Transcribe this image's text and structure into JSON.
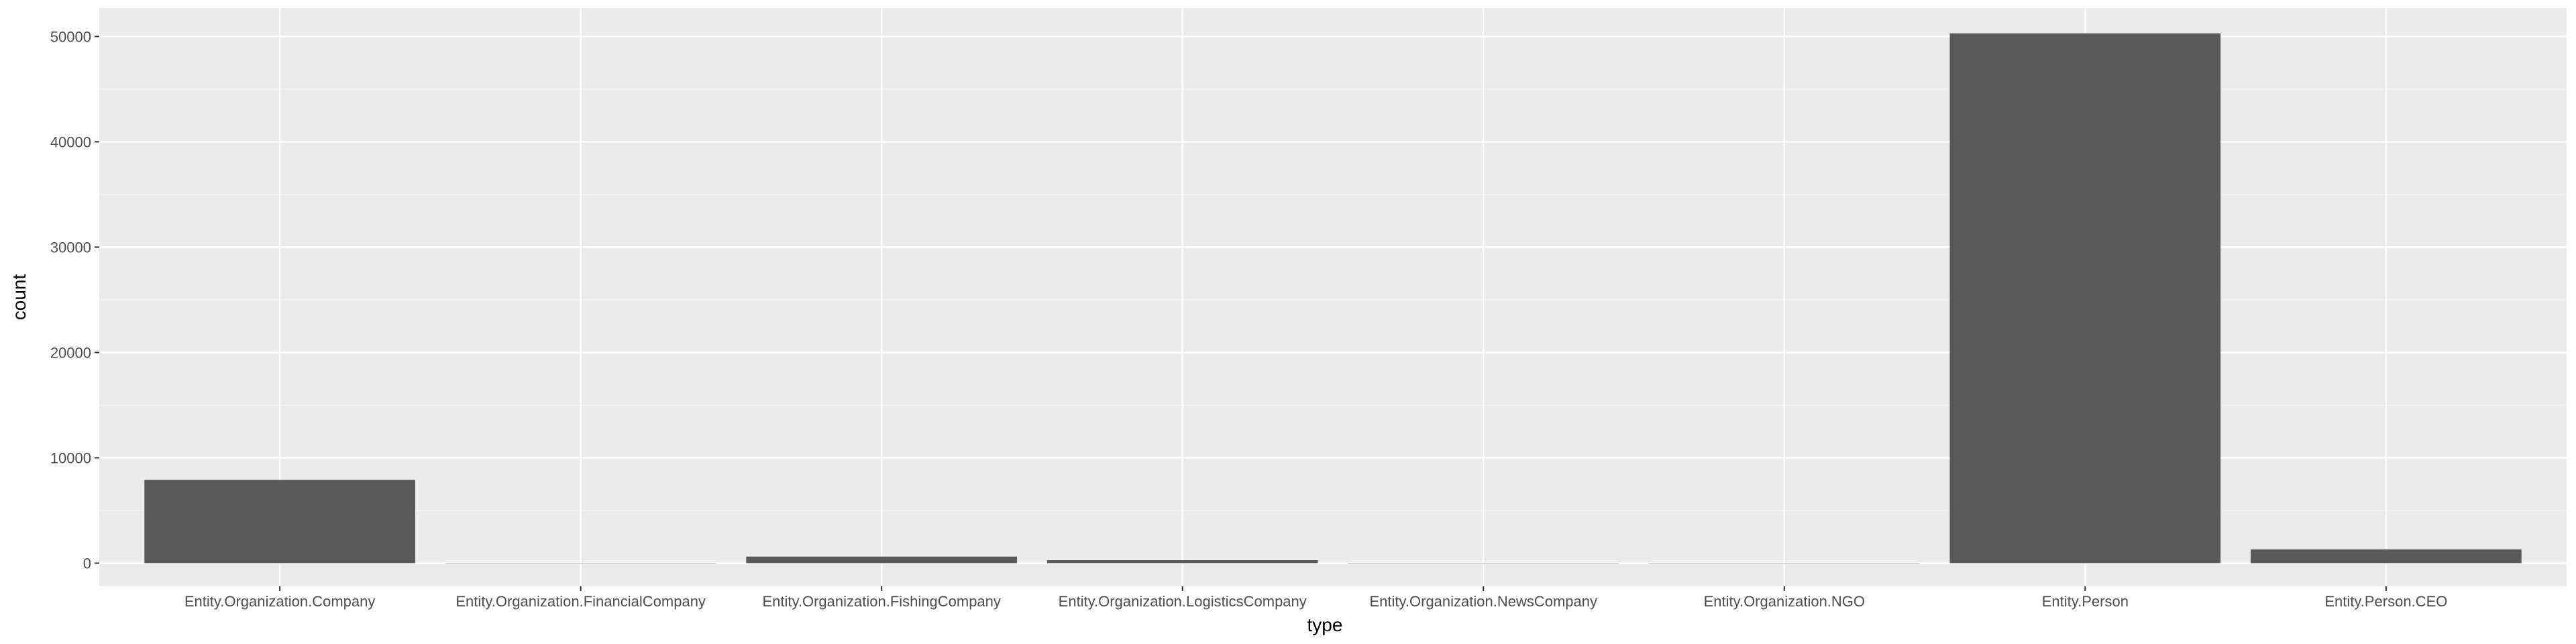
{
  "chart_data": {
    "type": "bar",
    "title": "",
    "xlabel": "type",
    "ylabel": "count",
    "categories": [
      "Entity.Organization.Company",
      "Entity.Organization.FinancialCompany",
      "Entity.Organization.FishingCompany",
      "Entity.Organization.LogisticsCompany",
      "Entity.Organization.NewsCompany",
      "Entity.Organization.NGO",
      "Entity.Person",
      "Entity.Person.CEO"
    ],
    "values": [
      7900,
      20,
      620,
      280,
      10,
      15,
      50300,
      1300
    ],
    "ylim": [
      -2200,
      52700
    ],
    "yticks": [
      0,
      10000,
      20000,
      30000,
      40000,
      50000
    ],
    "ytick_labels": [
      "0",
      "10000",
      "20000",
      "30000",
      "40000",
      "50000"
    ],
    "grid": true,
    "legend": "none",
    "colors": {
      "panel": "#ebebeb",
      "grid_major": "#ffffff",
      "grid_minor": "#f5f5f5",
      "bar": "#595959",
      "tick": "#333333",
      "tick_label": "#4d4d4d",
      "title": "#000000"
    }
  }
}
